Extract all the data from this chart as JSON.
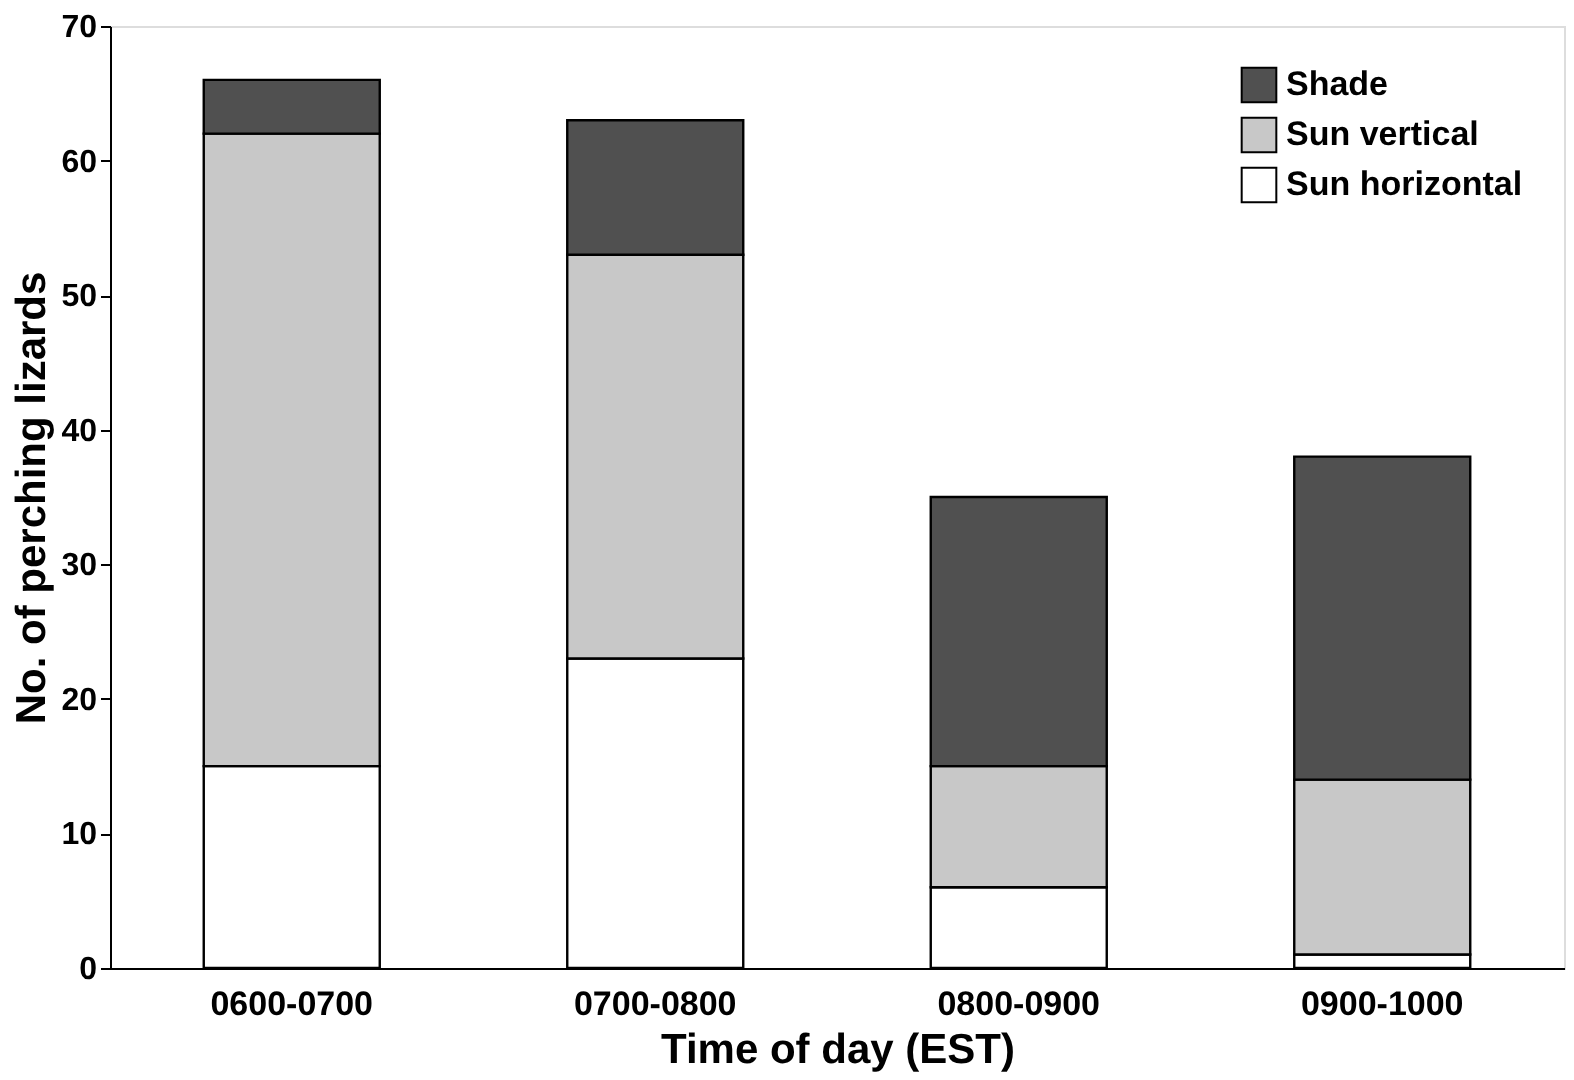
{
  "chart_data": {
    "type": "bar",
    "stacked": true,
    "xlabel": "Time of day (EST)",
    "ylabel": "No. of perching lizards",
    "categories": [
      "0600-0700",
      "0700-0800",
      "0800-0900",
      "0900-1000"
    ],
    "series": [
      {
        "name": "Sun horizontal",
        "color": "#ffffff",
        "values": [
          15,
          23,
          6,
          1
        ]
      },
      {
        "name": "Sun vertical",
        "color": "#c8c8c8",
        "values": [
          47,
          30,
          9,
          13
        ]
      },
      {
        "name": "Shade",
        "color": "#505050",
        "values": [
          4,
          10,
          20,
          24
        ]
      }
    ],
    "ylim": [
      0,
      70
    ],
    "yticks": [
      0,
      10,
      20,
      30,
      40,
      50,
      60,
      70
    ],
    "grid": false,
    "legend": "top right"
  }
}
